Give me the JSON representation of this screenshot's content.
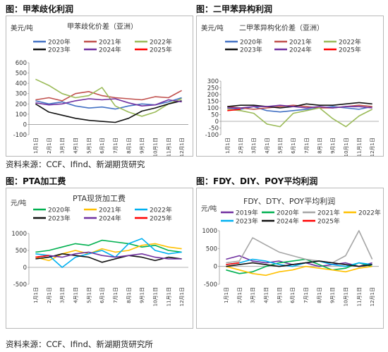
{
  "captions": {
    "top_left": "图：甲苯歧化利润",
    "top_right": "图：二甲苯异构利润",
    "bottom_left": "图：PTA加工费",
    "bottom_right": "图：FDY、DIY、POY平均利润"
  },
  "sources": {
    "middle": "资料来源：CCF、Ifind、新湖期货研究",
    "bottom": "资料来源：CCF、Ifind、新湖期货研究所"
  },
  "chart_data": [
    {
      "type": "line",
      "title": "甲苯歧化价差（亚洲）",
      "ylabel": "美元/吨",
      "ylim": [
        -100,
        600
      ],
      "yticks": [
        -100,
        0,
        100,
        200,
        300,
        400,
        500,
        600
      ],
      "xticks": [
        "1月1日",
        "2月1日",
        "3月1日",
        "4月1日",
        "5月1日",
        "6月1日",
        "7月1日",
        "8月1日",
        "9月1日",
        "10月1日",
        "11月1日",
        "12月1日"
      ],
      "grid": false,
      "legend_position": "top",
      "series": [
        {
          "name": "2020年",
          "color": "#4472c4",
          "values": [
            230,
            200,
            220,
            180,
            160,
            170,
            150,
            180,
            200,
            190,
            220,
            260
          ]
        },
        {
          "name": "2021年",
          "color": "#c0504d",
          "values": [
            240,
            260,
            230,
            300,
            320,
            280,
            260,
            250,
            240,
            270,
            260,
            330
          ]
        },
        {
          "name": "2022年",
          "color": "#9bbb59",
          "values": [
            440,
            380,
            300,
            260,
            280,
            360,
            180,
            120,
            80,
            120,
            200,
            250
          ]
        },
        {
          "name": "2023年",
          "color": "#111111",
          "values": [
            200,
            120,
            90,
            60,
            40,
            30,
            20,
            60,
            130,
            160,
            200,
            230
          ]
        },
        {
          "name": "2024年",
          "color": "#7030a0",
          "values": [
            210,
            190,
            200,
            230,
            250,
            240,
            250,
            210,
            180,
            190,
            240,
            220
          ]
        },
        {
          "name": "2025年",
          "color": "#ff0000",
          "values": [
            null,
            null,
            null,
            null,
            null,
            null,
            null,
            null,
            null,
            null,
            null,
            null
          ]
        }
      ]
    },
    {
      "type": "line",
      "title": "二甲苯异构化价差（亚洲）",
      "ylabel": "美元/吨",
      "ylim": [
        -100,
        300
      ],
      "yticks": [
        -100,
        -50,
        0,
        50,
        100,
        150,
        200,
        250,
        300
      ],
      "xticks": [
        "1月1日",
        "2月1日",
        "3月1日",
        "4月1日",
        "5月1日",
        "6月1日",
        "7月1日",
        "8月1日",
        "9月1日",
        "10月1日",
        "11月1日",
        "12月1日"
      ],
      "grid": false,
      "legend_position": "top",
      "series": [
        {
          "name": "2020年",
          "color": "#4472c4",
          "values": [
            100,
            90,
            110,
            80,
            70,
            80,
            90,
            100,
            110,
            100,
            90,
            110
          ]
        },
        {
          "name": "2021年",
          "color": "#c0504d",
          "values": [
            110,
            100,
            90,
            100,
            110,
            120,
            110,
            100,
            100,
            110,
            120,
            110
          ]
        },
        {
          "name": "2022年",
          "color": "#9bbb59",
          "values": [
            90,
            80,
            60,
            -20,
            -40,
            60,
            80,
            100,
            20,
            -40,
            40,
            90
          ]
        },
        {
          "name": "2023年",
          "color": "#111111",
          "values": [
            110,
            120,
            120,
            110,
            100,
            110,
            130,
            120,
            120,
            130,
            140,
            130
          ]
        },
        {
          "name": "2024年",
          "color": "#7030a0",
          "values": [
            100,
            100,
            110,
            110,
            120,
            110,
            100,
            110,
            100,
            110,
            110,
            100
          ]
        },
        {
          "name": "2025年",
          "color": "#ff0000",
          "values": [
            80,
            90,
            null,
            null,
            null,
            null,
            null,
            null,
            null,
            null,
            null,
            null
          ]
        }
      ]
    },
    {
      "type": "line",
      "title": "PTA现货加工费",
      "ylabel": "元/吨",
      "ylim": [
        -500,
        1000
      ],
      "yticks": [
        -500,
        0,
        500,
        1000
      ],
      "xticks": [
        "1月1日",
        "2月1日",
        "3月1日",
        "4月1日",
        "5月1日",
        "6月1日",
        "7月1日",
        "8月1日",
        "9月1日",
        "10月1日",
        "11月1日",
        "12月1日"
      ],
      "grid": false,
      "legend_position": "top",
      "series": [
        {
          "name": "2020年",
          "color": "#00b050",
          "values": [
            450,
            500,
            600,
            700,
            650,
            800,
            750,
            700,
            600,
            650,
            500,
            450
          ]
        },
        {
          "name": "2021年",
          "color": "#ffc000",
          "values": [
            300,
            200,
            400,
            500,
            400,
            550,
            450,
            500,
            650,
            700,
            600,
            550
          ]
        },
        {
          "name": "2022年",
          "color": "#00b0f0",
          "values": [
            400,
            350,
            0,
            300,
            400,
            500,
            300,
            700,
            850,
            500,
            400,
            450
          ]
        },
        {
          "name": "2023年",
          "color": "#111111",
          "values": [
            250,
            300,
            400,
            350,
            300,
            150,
            250,
            350,
            300,
            200,
            300,
            250
          ]
        },
        {
          "name": "2024年",
          "color": "#7030a0",
          "values": [
            300,
            350,
            300,
            400,
            450,
            350,
            300,
            350,
            400,
            300,
            250,
            250
          ]
        },
        {
          "name": "2025年",
          "color": "#ff0000",
          "values": [
            300,
            350,
            null,
            null,
            null,
            null,
            null,
            null,
            null,
            null,
            null,
            null
          ]
        }
      ]
    },
    {
      "type": "line",
      "title": "FDY、DTY、POY平均利润",
      "ylabel": "元/吨",
      "ylim": [
        -500,
        1000
      ],
      "yticks": [
        -500,
        0,
        500,
        1000
      ],
      "xticks": [
        "1月1日",
        "2月1日",
        "3月1日",
        "4月1日",
        "5月1日",
        "6月1日",
        "7月1日",
        "8月1日",
        "9月1日",
        "10月1日",
        "11月1日",
        "12月1日"
      ],
      "grid": false,
      "legend_position": "top",
      "series": [
        {
          "name": "2019年",
          "color": "#7030a0",
          "values": [
            200,
            300,
            150,
            100,
            150,
            50,
            100,
            0,
            50,
            100,
            0,
            100
          ]
        },
        {
          "name": "2020年",
          "color": "#00b050",
          "values": [
            -100,
            -200,
            -150,
            0,
            100,
            150,
            200,
            50,
            -100,
            -50,
            100,
            0
          ]
        },
        {
          "name": "2021年",
          "color": "#a6a6a6",
          "values": [
            100,
            150,
            800,
            600,
            400,
            300,
            200,
            150,
            100,
            300,
            1000,
            200
          ]
        },
        {
          "name": "2022年",
          "color": "#ffc000",
          "values": [
            0,
            -100,
            -200,
            -250,
            -150,
            -100,
            0,
            -50,
            -100,
            -150,
            -50,
            0
          ]
        },
        {
          "name": "2023年",
          "color": "#00b0f0",
          "values": [
            50,
            100,
            200,
            150,
            50,
            0,
            100,
            150,
            50,
            0,
            100,
            50
          ]
        },
        {
          "name": "2024年",
          "color": "#111111",
          "values": [
            0,
            50,
            100,
            50,
            0,
            50,
            100,
            150,
            100,
            50,
            0,
            50
          ]
        },
        {
          "name": "2025年",
          "color": "#ff0000",
          "values": [
            50,
            100,
            null,
            null,
            null,
            null,
            null,
            null,
            null,
            null,
            null,
            null
          ]
        }
      ]
    }
  ]
}
